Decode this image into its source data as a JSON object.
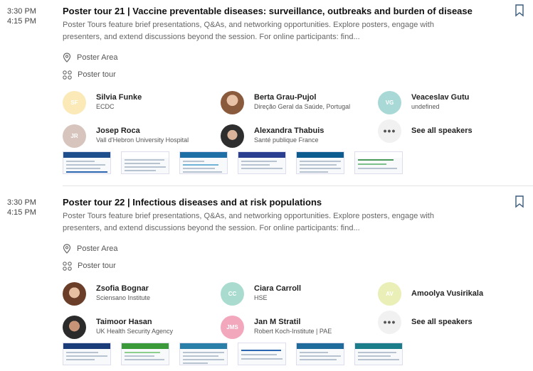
{
  "sessions": [
    {
      "time_start": "3:30 PM",
      "time_end": "4:15 PM",
      "title": "Poster tour 21 | Vaccine preventable diseases: surveillance, outbreaks and burden of disease",
      "description": "Poster Tours feature brief presentations, Q&As, and networking opportunities. Explore posters, engage with presenters, and extend discussions beyond the session. For online participants: find...",
      "location": "Poster Area",
      "type": "Poster tour",
      "speakers": [
        {
          "initials": "SF",
          "name": "Silvia Funke",
          "affiliation": "ECDC",
          "avatar_color": "#fbe9b8"
        },
        {
          "initials": "",
          "name": "Berta Grau-Pujol",
          "affiliation": "Direção Geral da Saúde, Portugal",
          "avatar_color": "#b98a6b"
        },
        {
          "initials": "VG",
          "name": "Veaceslav Gutu",
          "affiliation": "undefined",
          "avatar_color": "#a9d9d6"
        },
        {
          "initials": "JR",
          "name": "Josep Roca",
          "affiliation": "Vall d'Hebron University Hospital",
          "avatar_color": "#d7c5bd"
        },
        {
          "initials": "",
          "name": "Alexandra Thabuis",
          "affiliation": "Santé publique France",
          "avatar_color": "#3d3d3d"
        }
      ],
      "see_all_label": "See all speakers",
      "posters": [
        {
          "band": "#1f4e8c"
        },
        {
          "band": "#ffffff"
        },
        {
          "band": "#1d6fa5"
        },
        {
          "band": "#2a3f8f"
        },
        {
          "band": "#0d5c8f"
        },
        {
          "band": "#ffffff"
        }
      ]
    },
    {
      "time_start": "3:30 PM",
      "time_end": "4:15 PM",
      "title": "Poster tour 22 | Infectious diseases and at risk populations",
      "description": "Poster Tours feature brief presentations, Q&As, and networking opportunities. Explore posters, engage with presenters, and extend discussions beyond the session. For online participants: find...",
      "location": "Poster Area",
      "type": "Poster tour",
      "speakers": [
        {
          "initials": "",
          "name": "Zsofia Bognar",
          "affiliation": "Sciensano Institute",
          "avatar_color": "#a0705a"
        },
        {
          "initials": "CC",
          "name": "Ciara Carroll",
          "affiliation": "HSE",
          "avatar_color": "#a9dccf"
        },
        {
          "initials": "AV",
          "name": "Amoolya Vusirikala",
          "affiliation": "",
          "avatar_color": "#e9efb6"
        },
        {
          "initials": "",
          "name": "Taimoor Hasan",
          "affiliation": "UK Health Security Agency",
          "avatar_color": "#8a6a55"
        },
        {
          "initials": "JMS",
          "name": "Jan M Stratil",
          "affiliation": "Robert Koch-Institute | PAE",
          "avatar_color": "#f3a7bd"
        }
      ],
      "see_all_label": "See all speakers",
      "posters": [
        {
          "band": "#1a3d7a"
        },
        {
          "band": "#3a9a3a"
        },
        {
          "band": "#2a7fa8"
        },
        {
          "band": "#ffffff"
        },
        {
          "band": "#1f6c9c"
        },
        {
          "band": "#1b7c8a"
        }
      ]
    }
  ]
}
